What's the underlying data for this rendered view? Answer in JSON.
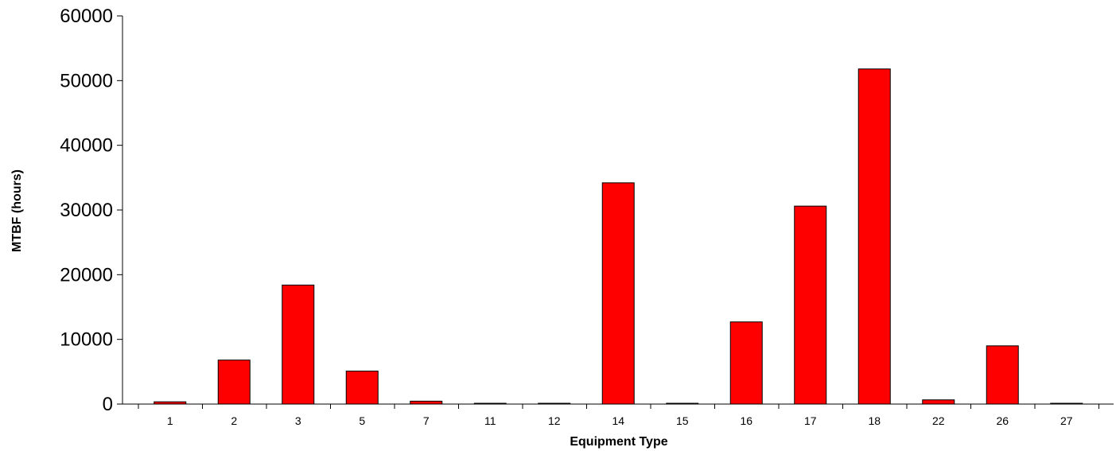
{
  "chart_data": {
    "type": "bar",
    "title": "",
    "xlabel": "Equipment Type",
    "ylabel": "MTBF (hours)",
    "ylim": [
      0,
      60000
    ],
    "yticks": [
      0,
      10000,
      20000,
      30000,
      40000,
      50000,
      60000
    ],
    "categories": [
      "1",
      "2",
      "3",
      "5",
      "7",
      "11",
      "12",
      "14",
      "15",
      "16",
      "17",
      "18",
      "22",
      "26",
      "27"
    ],
    "values": [
      350,
      6800,
      18400,
      5100,
      450,
      60,
      60,
      34200,
      60,
      12700,
      30600,
      51800,
      650,
      9000,
      60
    ],
    "bar_color": "#ff0000",
    "bar_edge_color": "#000000",
    "grid": false,
    "legend": "none"
  }
}
